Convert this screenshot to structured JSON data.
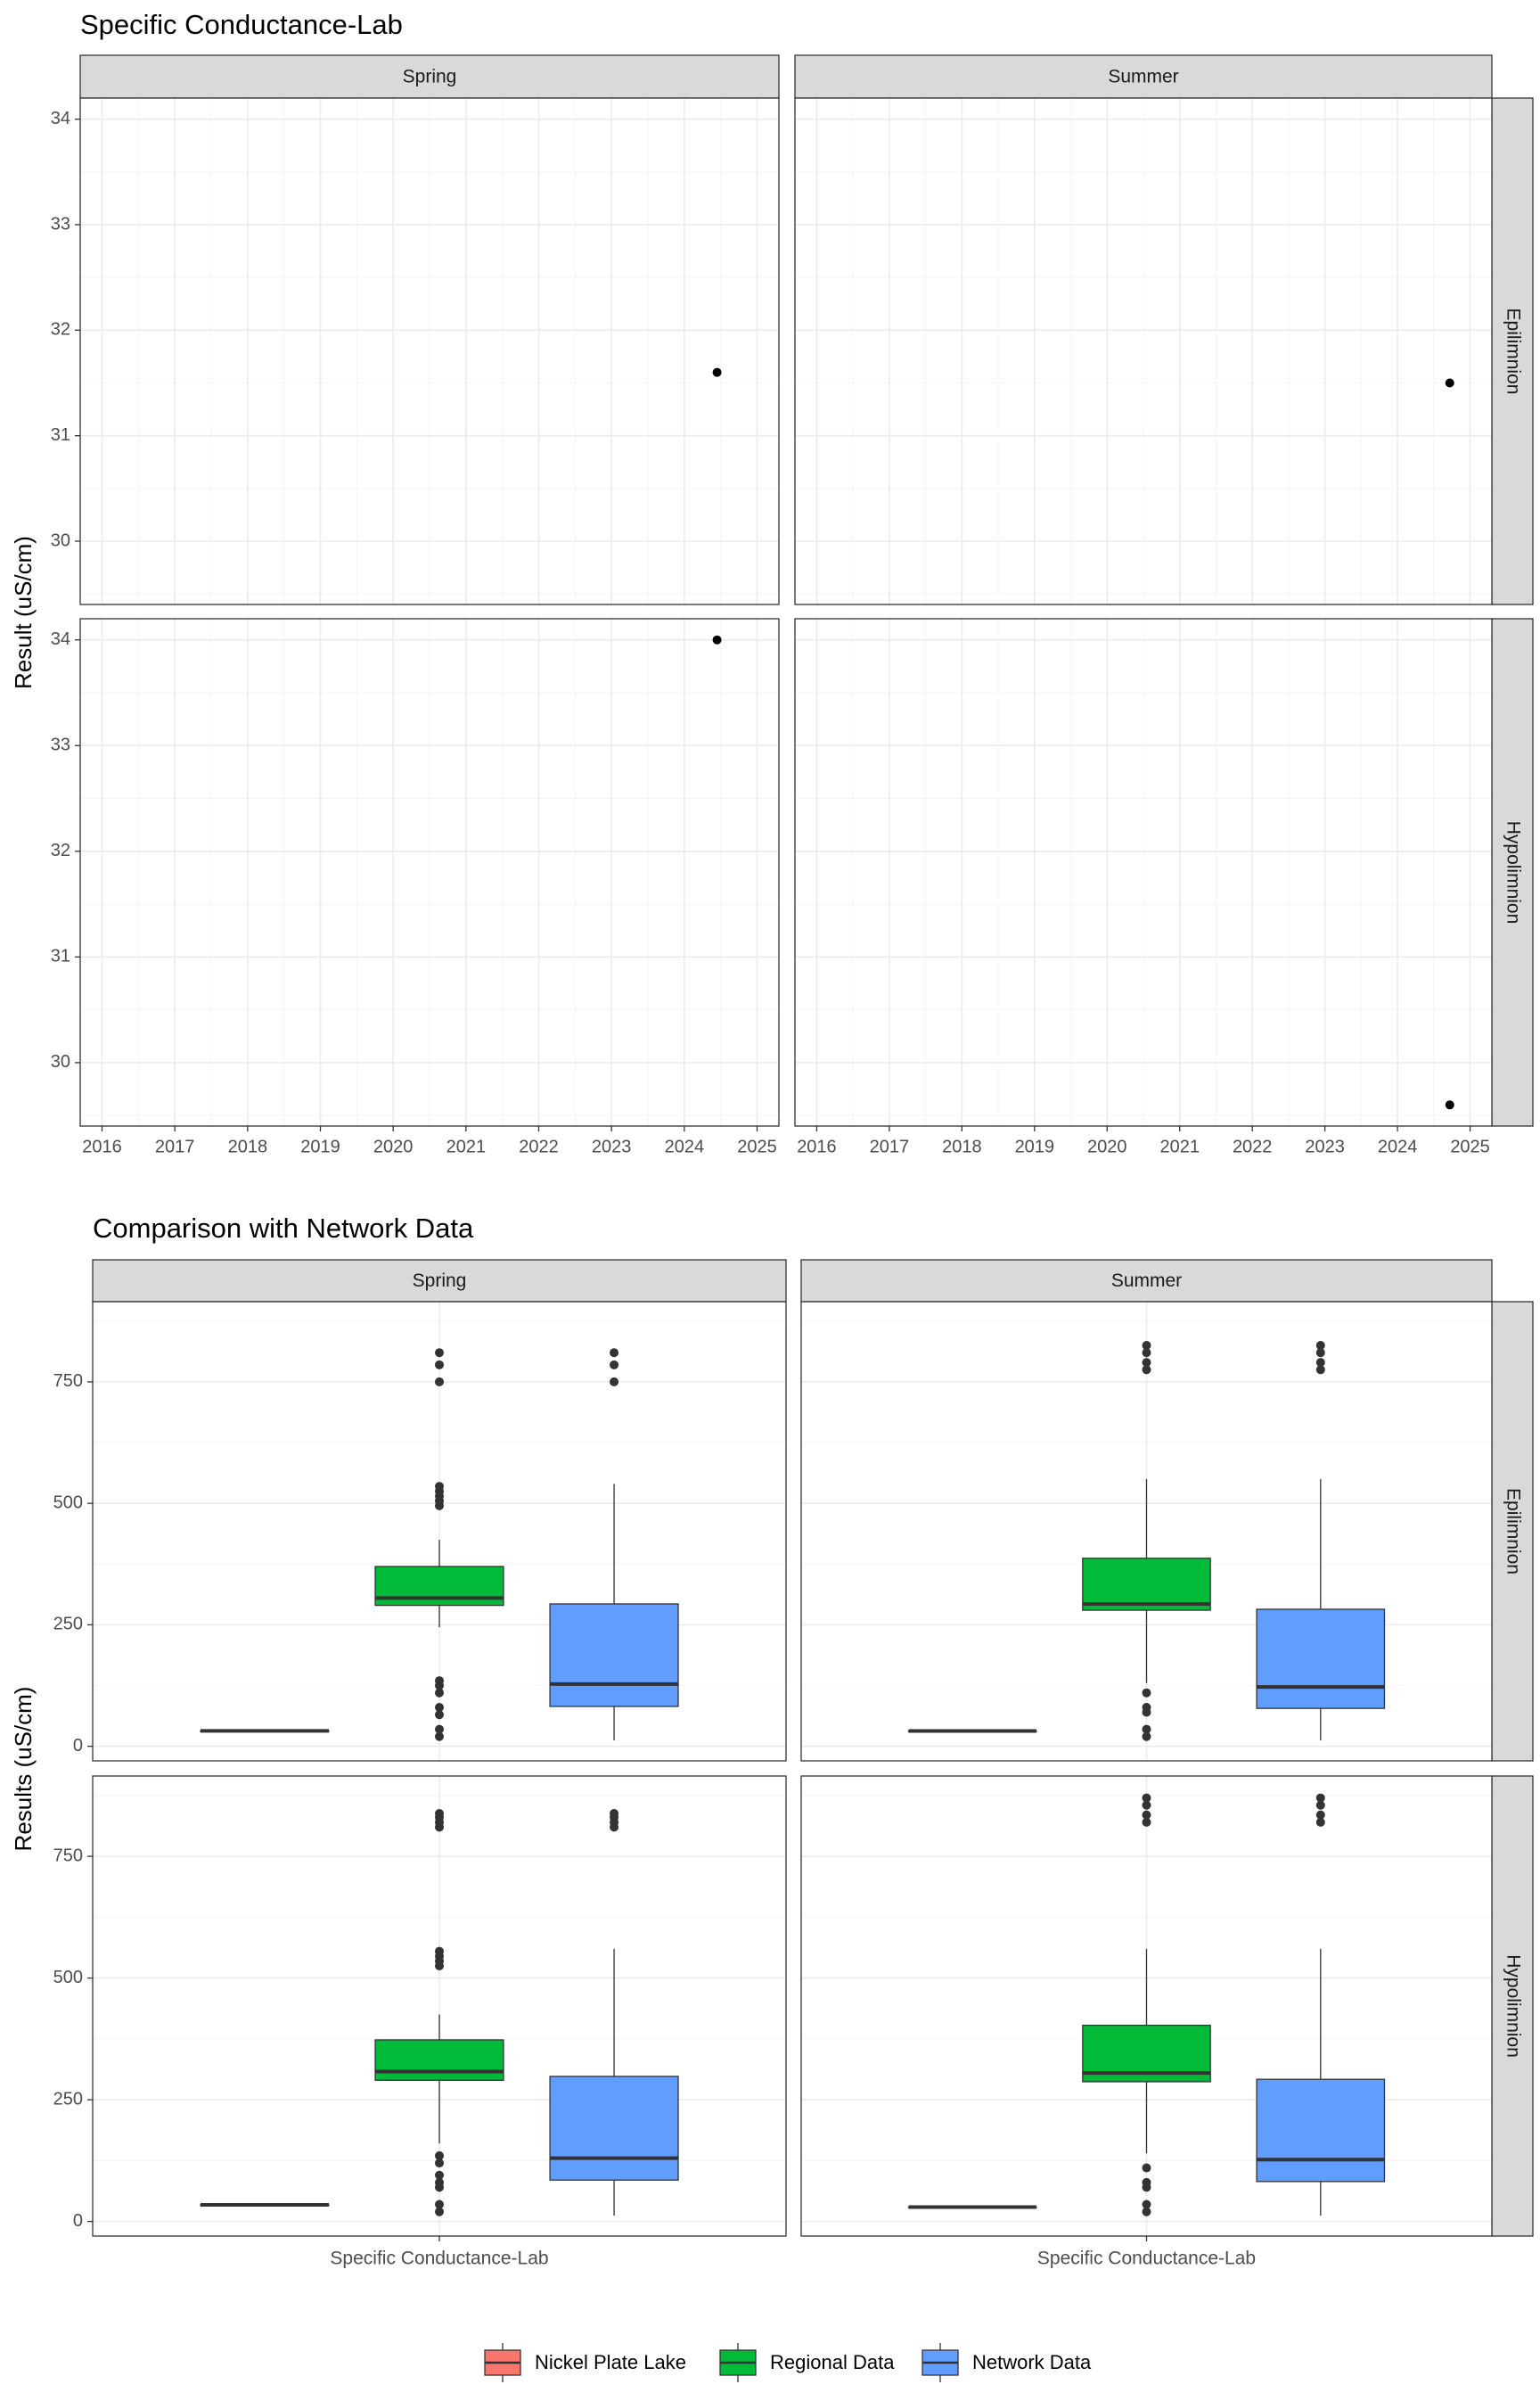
{
  "figure1": {
    "title": "Specific Conductance-Lab",
    "ylabel": "Result (uS/cm)",
    "facet_cols": [
      "Spring",
      "Summer"
    ],
    "facet_rows": [
      "Epilimnion",
      "Hypolimnion"
    ],
    "x_ticks": [
      "2016",
      "2017",
      "2018",
      "2019",
      "2020",
      "2021",
      "2022",
      "2023",
      "2024",
      "2025"
    ],
    "y_ticks": [
      "30",
      "31",
      "32",
      "33",
      "34"
    ]
  },
  "figure2": {
    "title": "Comparison with Network Data",
    "ylabel": "Results (uS/cm)",
    "xlabel_tick": "Specific Conductance-Lab",
    "facet_cols": [
      "Spring",
      "Summer"
    ],
    "facet_rows": [
      "Epilimnion",
      "Hypolimnion"
    ],
    "y_ticks": [
      "0",
      "250",
      "500",
      "750"
    ]
  },
  "legend": {
    "items": [
      {
        "label": "Nickel Plate Lake",
        "color": "#F8766D"
      },
      {
        "label": "Regional Data",
        "color": "#00BA38"
      },
      {
        "label": "Network Data",
        "color": "#619CFF"
      }
    ]
  },
  "chart_data": [
    {
      "type": "scatter",
      "title": "Specific Conductance-Lab",
      "xlabel": "",
      "ylabel": "Result (uS/cm)",
      "xlim": [
        2015.7,
        2025.3
      ],
      "ylim": [
        29.4,
        34.2
      ],
      "grid": true,
      "facets": [
        {
          "col": "Spring",
          "row": "Epilimnion",
          "points": [
            {
              "x": 2024.45,
              "y": 31.6
            }
          ]
        },
        {
          "col": "Summer",
          "row": "Epilimnion",
          "points": [
            {
              "x": 2024.72,
              "y": 31.5
            }
          ]
        },
        {
          "col": "Spring",
          "row": "Hypolimnion",
          "points": [
            {
              "x": 2024.45,
              "y": 34.0
            }
          ]
        },
        {
          "col": "Summer",
          "row": "Hypolimnion",
          "points": [
            {
              "x": 2024.72,
              "y": 29.6
            }
          ]
        }
      ]
    },
    {
      "type": "box",
      "title": "Comparison with Network Data",
      "categories": [
        "Specific Conductance-Lab"
      ],
      "ylabel": "Results (uS/cm)",
      "ylim": [
        -30,
        915
      ],
      "grid": true,
      "legend_position": "bottom",
      "series_names": [
        "Nickel Plate Lake",
        "Regional Data",
        "Network Data"
      ],
      "facets": [
        {
          "col": "Spring",
          "row": "Epilimnion",
          "boxes": [
            {
              "series": "Nickel Plate Lake",
              "min": 31.6,
              "q1": 31.6,
              "median": 31.6,
              "q3": 31.6,
              "max": 31.6,
              "outliers": []
            },
            {
              "series": "Regional Data",
              "min": 245,
              "q1": 290,
              "median": 305,
              "q3": 370,
              "max": 425,
              "outliers": [
                20,
                35,
                65,
                80,
                110,
                125,
                135,
                495,
                505,
                515,
                525,
                535,
                750,
                785,
                810
              ]
            },
            {
              "series": "Network Data",
              "min": 12,
              "q1": 82,
              "median": 128,
              "q3": 293,
              "max": 540,
              "outliers": [
                750,
                785,
                810
              ]
            }
          ]
        },
        {
          "col": "Summer",
          "row": "Epilimnion",
          "boxes": [
            {
              "series": "Nickel Plate Lake",
              "min": 31.5,
              "q1": 31.5,
              "median": 31.5,
              "q3": 31.5,
              "max": 31.5,
              "outliers": []
            },
            {
              "series": "Regional Data",
              "min": 130,
              "q1": 280,
              "median": 293,
              "q3": 387,
              "max": 550,
              "outliers": [
                20,
                35,
                70,
                80,
                110,
                775,
                790,
                810,
                825
              ]
            },
            {
              "series": "Network Data",
              "min": 12,
              "q1": 78,
              "median": 122,
              "q3": 282,
              "max": 550,
              "outliers": [
                775,
                790,
                810,
                825
              ]
            }
          ]
        },
        {
          "col": "Spring",
          "row": "Hypolimnion",
          "boxes": [
            {
              "series": "Nickel Plate Lake",
              "min": 34.0,
              "q1": 34.0,
              "median": 34.0,
              "q3": 34.0,
              "max": 34.0,
              "outliers": []
            },
            {
              "series": "Regional Data",
              "min": 160,
              "q1": 290,
              "median": 308,
              "q3": 373,
              "max": 425,
              "outliers": [
                20,
                35,
                70,
                80,
                95,
                120,
                135,
                525,
                535,
                545,
                555,
                810,
                820,
                830,
                838
              ]
            },
            {
              "series": "Network Data",
              "min": 12,
              "q1": 85,
              "median": 130,
              "q3": 298,
              "max": 560,
              "outliers": [
                810,
                820,
                830,
                838
              ]
            }
          ]
        },
        {
          "col": "Summer",
          "row": "Hypolimnion",
          "boxes": [
            {
              "series": "Nickel Plate Lake",
              "min": 29.6,
              "q1": 29.6,
              "median": 29.6,
              "q3": 29.6,
              "max": 29.6,
              "outliers": []
            },
            {
              "series": "Regional Data",
              "min": 140,
              "q1": 287,
              "median": 305,
              "q3": 403,
              "max": 560,
              "outliers": [
                20,
                35,
                70,
                80,
                110,
                820,
                835,
                855,
                870
              ]
            },
            {
              "series": "Network Data",
              "min": 12,
              "q1": 82,
              "median": 127,
              "q3": 292,
              "max": 560,
              "outliers": [
                820,
                835,
                855,
                870
              ]
            }
          ]
        }
      ]
    }
  ]
}
